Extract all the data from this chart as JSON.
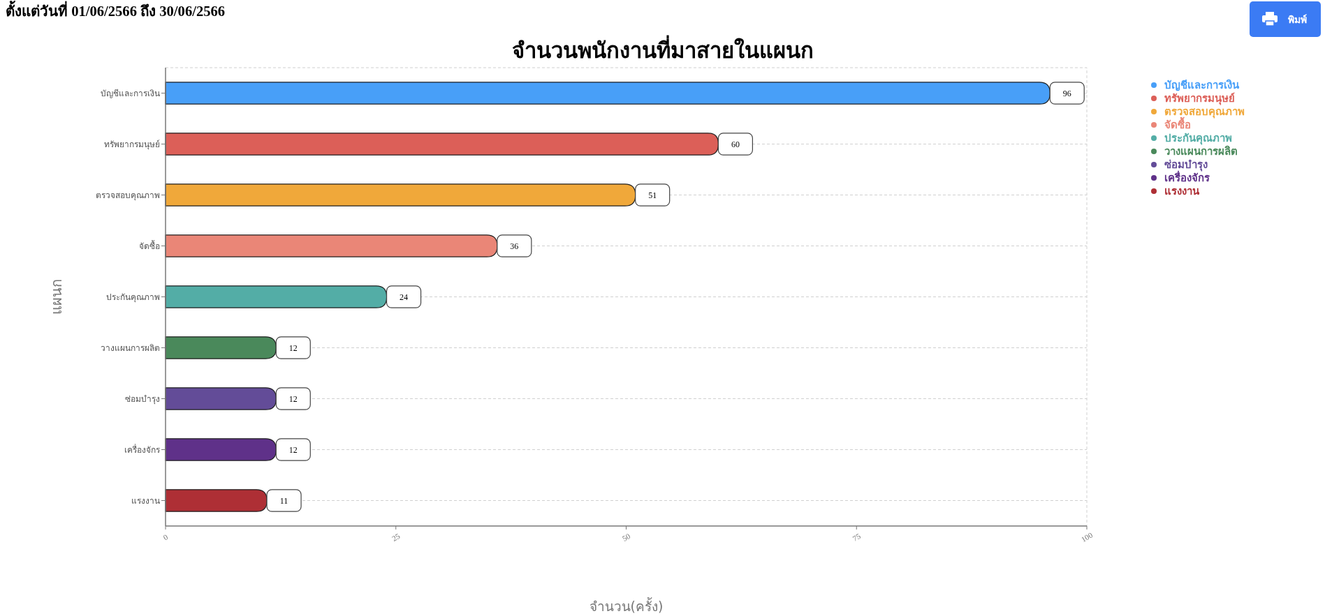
{
  "chart_data": {
    "type": "bar",
    "orientation": "horizontal",
    "stacked": true,
    "title": "จำนวนพนักงานที่มาสายในแผนก",
    "subtitle": "ตั้งแต่วันที่ 01/06/2566 ถึง 30/06/2566",
    "xlabel": "จำนวน(ครั้ง)",
    "ylabel": "แผนก",
    "categories": [
      "บัญชีและการเงิน",
      "ทรัพยากรมนุษย์",
      "ตรวจสอบคุณภาพ",
      "จัดซื้อ",
      "ประกันคุณภาพ",
      "วางแผนการผลิต",
      "ซ่อมบำรุง",
      "เครื่องจักร",
      "แรงงาน"
    ],
    "series": [
      {
        "name": "บัญชีและการเงิน",
        "color": "#489ff8",
        "values": [
          96,
          null,
          null,
          null,
          null,
          null,
          null,
          null,
          null
        ]
      },
      {
        "name": "ทรัพยากรมนุษย์",
        "color": "#dc5f58",
        "values": [
          null,
          60,
          null,
          null,
          null,
          null,
          null,
          null,
          null
        ]
      },
      {
        "name": "ตรวจสอบคุณภาพ",
        "color": "#f0a83a",
        "values": [
          null,
          null,
          51,
          null,
          null,
          null,
          null,
          null,
          null
        ]
      },
      {
        "name": "จัดซื้อ",
        "color": "#ea8677",
        "values": [
          null,
          null,
          null,
          36,
          null,
          null,
          null,
          null,
          null
        ]
      },
      {
        "name": "ประกันคุณภาพ",
        "color": "#53ada6",
        "values": [
          null,
          null,
          null,
          null,
          24,
          null,
          null,
          null,
          null
        ]
      },
      {
        "name": "วางแผนการผลิต",
        "color": "#4a895b",
        "values": [
          null,
          null,
          null,
          null,
          null,
          12,
          null,
          null,
          null
        ]
      },
      {
        "name": "ซ่อมบำรุง",
        "color": "#634c98",
        "values": [
          null,
          null,
          null,
          null,
          null,
          null,
          12,
          null,
          null
        ]
      },
      {
        "name": "เครื่องจักร",
        "color": "#5f3189",
        "values": [
          null,
          null,
          null,
          null,
          null,
          null,
          null,
          12,
          null
        ]
      },
      {
        "name": "แรงงาน",
        "color": "#ae2f35",
        "values": [
          null,
          null,
          null,
          null,
          null,
          null,
          null,
          null,
          11
        ]
      }
    ],
    "xlim": [
      0,
      100
    ],
    "xticks": [
      0,
      25,
      50,
      75,
      100
    ],
    "grid": "y",
    "legend": "top right",
    "data_labels": true,
    "annotations": [
      "พิมพ์"
    ]
  }
}
